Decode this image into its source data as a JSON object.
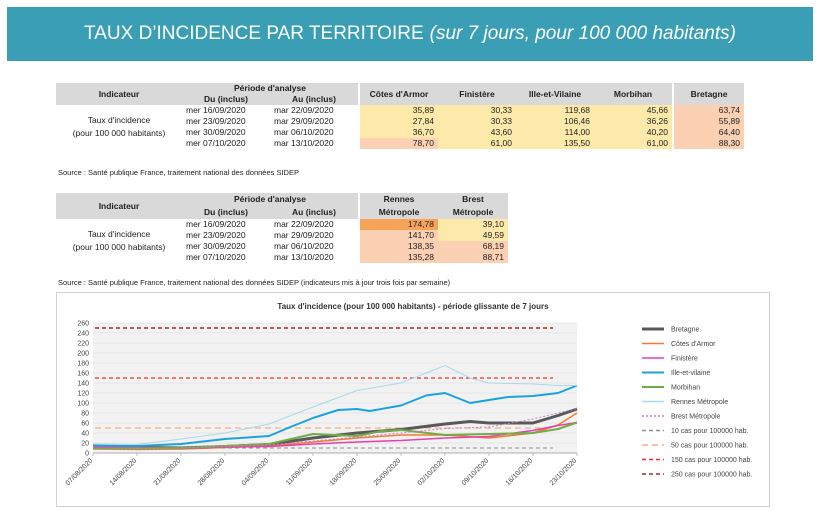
{
  "banner": {
    "title": "TAUX D’INCIDENCE PAR TERRITOIRE",
    "subtitle": "(sur 7 jours, pour 100 000 habitants)"
  },
  "table1": {
    "h_indicateur": "Indicateur",
    "h_periode": "Période d'analyse",
    "h_du": "Du (inclus)",
    "h_au": "Au (inclus)",
    "h_cols": [
      "Côtes d'Armor",
      "Finistère",
      "Ille-et-Vilaine",
      "Morbihan",
      "Bretagne"
    ],
    "indicator_label": "Taux d'incidence\n(pour 100 000 habitants)",
    "rows": [
      {
        "du": "mer 16/09/2020",
        "au": "mar 22/09/2020",
        "vals": [
          "35,89",
          "30,33",
          "119,68",
          "45,66",
          "63,74"
        ]
      },
      {
        "du": "mer 23/09/2020",
        "au": "mar 29/09/2020",
        "vals": [
          "27,84",
          "30,33",
          "106,46",
          "36,26",
          "55,89"
        ]
      },
      {
        "du": "mer 30/09/2020",
        "au": "mar 06/10/2020",
        "vals": [
          "36,70",
          "43,60",
          "114,00",
          "40,20",
          "64,40"
        ]
      },
      {
        "du": "mer 07/10/2020",
        "au": "mar 13/10/2020",
        "vals": [
          "78,70",
          "61,00",
          "135,50",
          "61,00",
          "88,30"
        ]
      }
    ],
    "source": "Source  : Santé publique France, traitement national des données SIDEP"
  },
  "table2": {
    "h_indicateur": "Indicateur",
    "h_periode": "Période d'analyse",
    "h_du": "Du (inclus)",
    "h_au": "Au (inclus)",
    "h_cols": [
      "Rennes\nMétropole",
      "Brest\nMétropole"
    ],
    "indicator_label": "Taux d'incidence\n(pour 100 000 habitants)",
    "rows": [
      {
        "du": "mer 16/09/2020",
        "au": "mar 22/09/2020",
        "vals": [
          "174,78",
          "39,10"
        ]
      },
      {
        "du": "mer 23/09/2020",
        "au": "mar 29/09/2020",
        "vals": [
          "141,70",
          "49,59"
        ]
      },
      {
        "du": "mer 30/09/2020",
        "au": "mar 06/10/2020",
        "vals": [
          "138,35",
          "68,19"
        ]
      },
      {
        "du": "mer 07/10/2020",
        "au": "mar 13/10/2020",
        "vals": [
          "135,28",
          "88,71"
        ]
      }
    ],
    "source": "Source  : Santé publique France, traitement national des données SIDEP (indicateurs mis à jour trois fois par semaine)"
  },
  "chart_data": {
    "type": "line",
    "title": "Taux d'incidence (pour 100 000 habitants) - période glissante de 7 jours",
    "xlabel": "",
    "ylabel": "",
    "ylim": [
      0,
      260
    ],
    "yticks": [
      0,
      20,
      40,
      60,
      80,
      100,
      120,
      140,
      160,
      180,
      200,
      220,
      240,
      260
    ],
    "x_tick_labels": [
      "07/08/2020",
      "14/08/2020",
      "21/08/2020",
      "28/08/2020",
      "04/09/2020",
      "11/09/2020",
      "18/09/2020",
      "25/09/2020",
      "02/10/2020",
      "09/10/2020",
      "16/10/2020",
      "23/10/2020"
    ],
    "x_day_range": [
      0,
      77
    ],
    "grid": true,
    "legend_position": "right",
    "series": [
      {
        "name": "Bretagne",
        "color": "#595959",
        "width": 3,
        "dash": "",
        "points": [
          [
            0,
            10
          ],
          [
            7,
            11
          ],
          [
            14,
            10
          ],
          [
            21,
            13
          ],
          [
            28,
            17
          ],
          [
            35,
            30
          ],
          [
            42,
            40
          ],
          [
            49,
            47
          ],
          [
            56,
            58
          ],
          [
            60,
            63
          ],
          [
            63,
            60
          ],
          [
            70,
            60
          ],
          [
            74,
            75
          ],
          [
            77,
            88
          ]
        ]
      },
      {
        "name": "Côtes d'Armor",
        "color": "#ed7d31",
        "width": 1.5,
        "dash": "",
        "points": [
          [
            0,
            8
          ],
          [
            7,
            7
          ],
          [
            14,
            8
          ],
          [
            21,
            11
          ],
          [
            28,
            14
          ],
          [
            35,
            22
          ],
          [
            42,
            30
          ],
          [
            49,
            36
          ],
          [
            56,
            36
          ],
          [
            63,
            30
          ],
          [
            70,
            40
          ],
          [
            74,
            56
          ],
          [
            77,
            80
          ]
        ]
      },
      {
        "name": "Finistère",
        "color": "#e83fb0",
        "width": 1.5,
        "dash": "",
        "points": [
          [
            0,
            12
          ],
          [
            7,
            11
          ],
          [
            14,
            9
          ],
          [
            21,
            12
          ],
          [
            28,
            13
          ],
          [
            35,
            18
          ],
          [
            42,
            22
          ],
          [
            49,
            25
          ],
          [
            56,
            30
          ],
          [
            63,
            33
          ],
          [
            70,
            45
          ],
          [
            74,
            55
          ],
          [
            77,
            61
          ]
        ]
      },
      {
        "name": "Ille-et-vilaine",
        "color": "#1aa3dc",
        "width": 2,
        "dash": "",
        "points": [
          [
            0,
            15
          ],
          [
            7,
            14
          ],
          [
            14,
            18
          ],
          [
            21,
            28
          ],
          [
            28,
            34
          ],
          [
            31,
            50
          ],
          [
            35,
            70
          ],
          [
            39,
            86
          ],
          [
            42,
            88
          ],
          [
            44,
            84
          ],
          [
            49,
            95
          ],
          [
            53,
            115
          ],
          [
            56,
            120
          ],
          [
            60,
            100
          ],
          [
            63,
            106
          ],
          [
            66,
            112
          ],
          [
            70,
            114
          ],
          [
            74,
            120
          ],
          [
            77,
            135
          ]
        ]
      },
      {
        "name": "Morbihan",
        "color": "#70ad47",
        "width": 2,
        "dash": "",
        "points": [
          [
            0,
            9
          ],
          [
            7,
            9
          ],
          [
            14,
            10
          ],
          [
            21,
            14
          ],
          [
            28,
            18
          ],
          [
            35,
            38
          ],
          [
            42,
            34
          ],
          [
            46,
            44
          ],
          [
            49,
            46
          ],
          [
            56,
            36
          ],
          [
            63,
            38
          ],
          [
            70,
            40
          ],
          [
            74,
            48
          ],
          [
            77,
            61
          ]
        ]
      },
      {
        "name": "Rennes Métropole",
        "color": "#a9d8ec",
        "width": 1,
        "dash": "",
        "points": [
          [
            0,
            18
          ],
          [
            7,
            17
          ],
          [
            14,
            28
          ],
          [
            21,
            40
          ],
          [
            28,
            58
          ],
          [
            35,
            92
          ],
          [
            42,
            125
          ],
          [
            49,
            140
          ],
          [
            56,
            175
          ],
          [
            60,
            150
          ],
          [
            63,
            140
          ],
          [
            70,
            138
          ],
          [
            74,
            135
          ],
          [
            77,
            135
          ]
        ]
      },
      {
        "name": "Brest Métropole",
        "color": "#d27ac7",
        "width": 1,
        "dash": "2,2",
        "points": [
          [
            0,
            10
          ],
          [
            7,
            9
          ],
          [
            14,
            10
          ],
          [
            21,
            13
          ],
          [
            28,
            16
          ],
          [
            35,
            24
          ],
          [
            42,
            32
          ],
          [
            49,
            40
          ],
          [
            56,
            49
          ],
          [
            63,
            52
          ],
          [
            70,
            68
          ],
          [
            74,
            80
          ],
          [
            77,
            89
          ]
        ]
      },
      {
        "name": "10 cas pour 100000 hab.",
        "color": "#8c8c8c",
        "width": 1,
        "dash": "4,3",
        "points": [
          [
            0,
            10
          ],
          [
            77,
            10
          ]
        ]
      },
      {
        "name": "50 cas pour 100000 hab.",
        "color": "#f4b183",
        "width": 1.3,
        "dash": "6,4",
        "points": [
          [
            0,
            50
          ],
          [
            77,
            50
          ]
        ]
      },
      {
        "name": "150 cas pour 100000 hab.",
        "color": "#e6332a",
        "width": 1.3,
        "dash": "4,3",
        "points": [
          [
            0,
            150
          ],
          [
            77,
            150
          ]
        ]
      },
      {
        "name": "250 cas pour 100000 hab.",
        "color": "#a52a2a",
        "width": 1.5,
        "dash": "4,3",
        "points": [
          [
            0,
            250
          ],
          [
            77,
            250
          ]
        ]
      }
    ]
  }
}
